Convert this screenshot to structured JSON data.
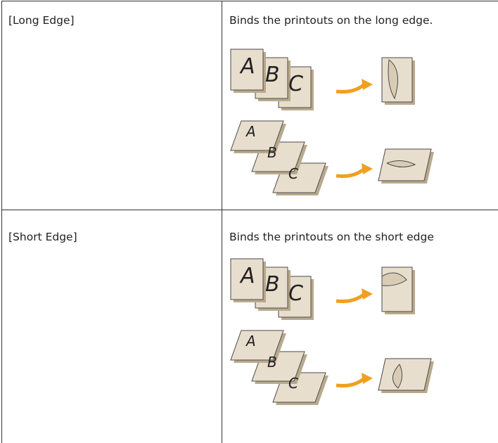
{
  "table": {
    "rows": [
      {
        "setting": "[Long Edge]",
        "description": "Binds the printouts on the long edge.",
        "figures": [
          {
            "pages": [
              "A",
              "B",
              "C"
            ]
          },
          {
            "pages": [
              "A",
              "B",
              "C"
            ]
          }
        ]
      },
      {
        "setting": "[Short Edge]",
        "description": "Binds the printouts on the short edge",
        "figures": [
          {
            "pages": [
              "A",
              "B",
              "C"
            ]
          },
          {
            "pages": [
              "A",
              "B",
              "C"
            ]
          }
        ]
      }
    ]
  }
}
